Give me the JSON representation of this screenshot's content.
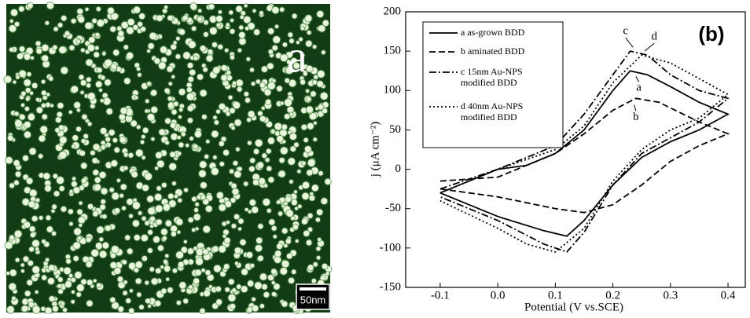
{
  "image": {
    "label": "a",
    "scale_bar": "50nm"
  },
  "chart_data": {
    "type": "line",
    "panel_label": "(b)",
    "x_label": "Potential (V vs.SCE)",
    "y_label": "j (μA cm⁻²)",
    "xlim": [
      -0.16,
      0.43
    ],
    "ylim": [
      -150,
      200
    ],
    "xticks": [
      -0.1,
      {
        "value": 0,
        "label": "0.0"
      },
      0.1,
      0.2,
      0.3,
      0.4
    ],
    "yticks": [
      -150,
      -100,
      -50,
      0,
      50,
      100,
      150,
      200
    ],
    "annotations": [
      "c",
      "d",
      "a",
      "b"
    ],
    "series": [
      {
        "name": "a  as-grown BDD",
        "color": "#000000",
        "dash": "solid",
        "x": [
          -0.1,
          0.0,
          0.05,
          0.1,
          0.15,
          0.2,
          0.23,
          0.26,
          0.3,
          0.35,
          0.4,
          0.35,
          0.3,
          0.25,
          0.2,
          0.15,
          0.12,
          0.08,
          0.0,
          -0.05,
          -0.1
        ],
        "values": [
          -30,
          0,
          5,
          20,
          50,
          100,
          125,
          120,
          105,
          85,
          70,
          50,
          35,
          15,
          -20,
          -65,
          -85,
          -78,
          -60,
          -45,
          -30
        ]
      },
      {
        "name": "b  aminated BDD",
        "color": "#000000",
        "dash": "dashed",
        "x": [
          -0.1,
          0.0,
          0.1,
          0.15,
          0.2,
          0.24,
          0.28,
          0.35,
          0.4,
          0.35,
          0.3,
          0.25,
          0.2,
          0.15,
          0.1,
          0.0,
          -0.1
        ],
        "values": [
          -15,
          -10,
          20,
          45,
          75,
          90,
          85,
          60,
          45,
          30,
          10,
          -20,
          -45,
          -55,
          -50,
          -35,
          -25
        ]
      },
      {
        "name": "c  15nm Au-NPS modified BDD",
        "color": "#000000",
        "dash": "dashdot",
        "x": [
          -0.1,
          0.0,
          0.1,
          0.15,
          0.2,
          0.23,
          0.26,
          0.3,
          0.35,
          0.4,
          0.35,
          0.3,
          0.25,
          0.2,
          0.15,
          0.12,
          0.08,
          0.0,
          -0.1
        ],
        "values": [
          -25,
          0,
          30,
          70,
          120,
          150,
          145,
          120,
          100,
          90,
          60,
          40,
          20,
          -20,
          -80,
          -105,
          -95,
          -65,
          -35
        ]
      },
      {
        "name": "d 40nm Au-NPS modified BDD",
        "color": "#000000",
        "dash": "dotted",
        "x": [
          -0.1,
          0.0,
          0.1,
          0.15,
          0.2,
          0.25,
          0.3,
          0.35,
          0.4,
          0.35,
          0.3,
          0.25,
          0.2,
          0.15,
          0.1,
          0.05,
          0.0,
          -0.1
        ],
        "values": [
          -30,
          0,
          25,
          55,
          110,
          145,
          135,
          115,
          95,
          65,
          50,
          25,
          -15,
          -75,
          -105,
          -95,
          -75,
          -40
        ]
      }
    ]
  }
}
